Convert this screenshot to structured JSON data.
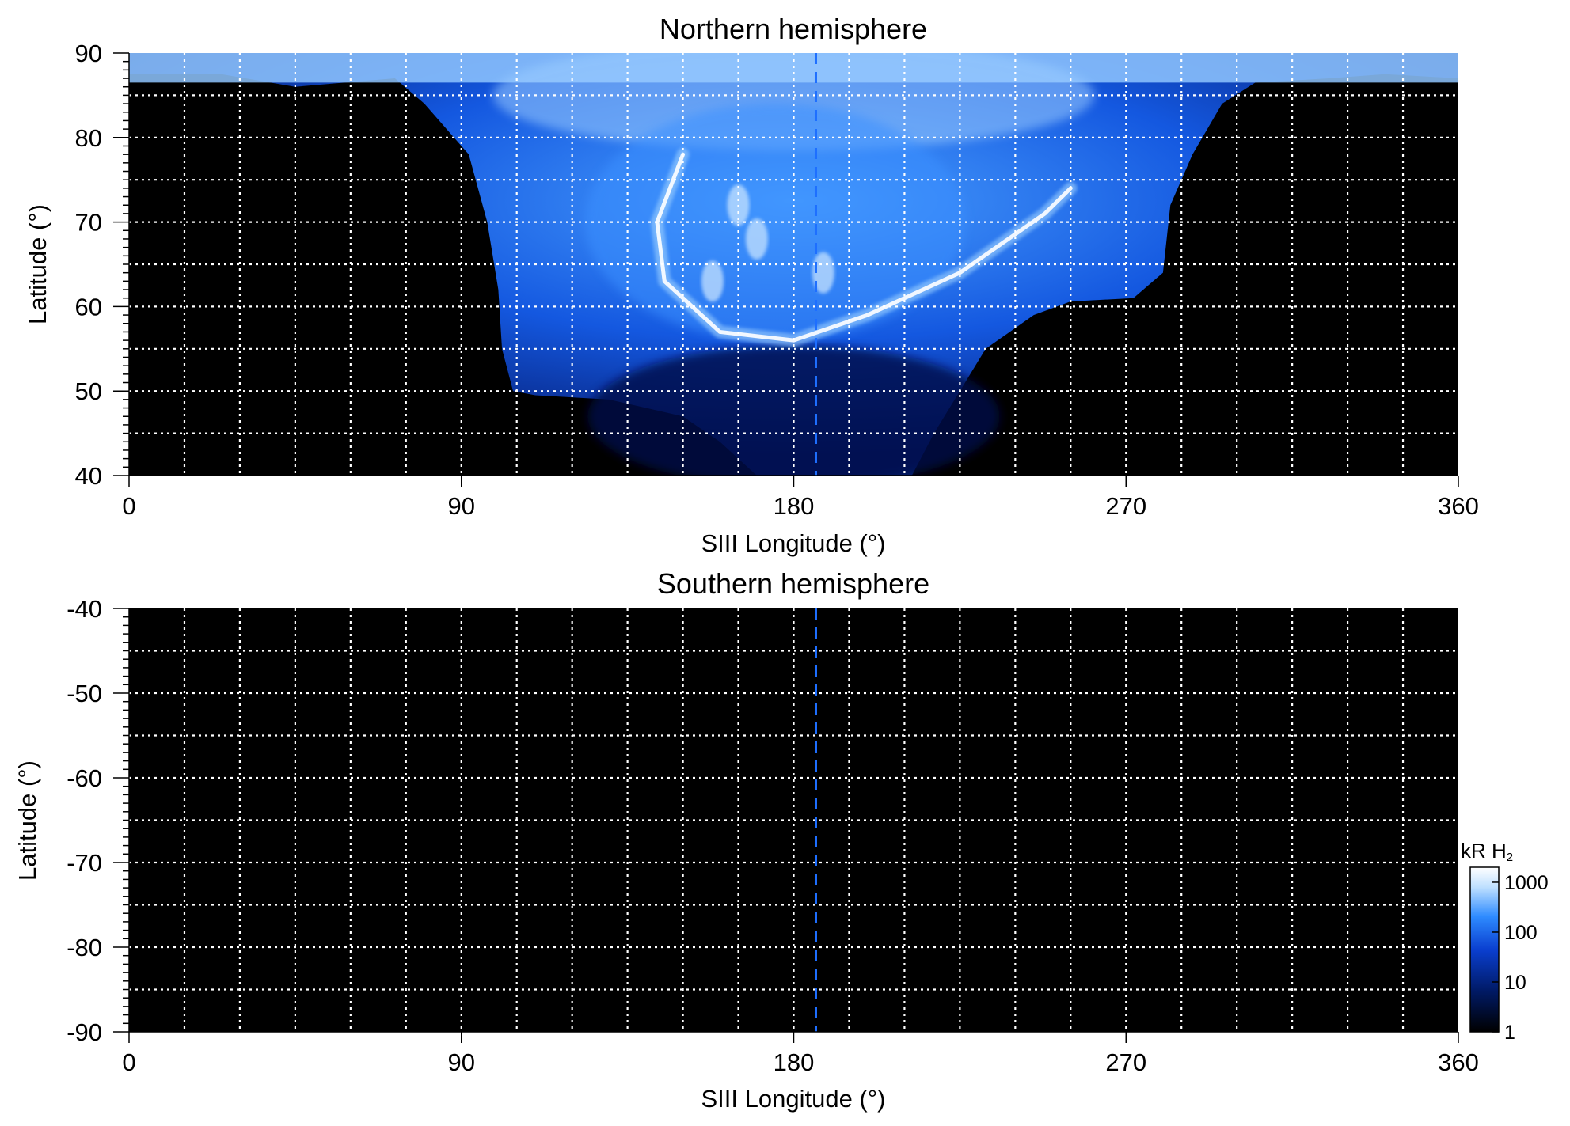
{
  "chart_data": [
    {
      "type": "heatmap",
      "title": "Northern hemisphere",
      "xlabel": "SIII Longitude (°)",
      "ylabel": "Latitude (°)",
      "xlim": [
        0,
        360
      ],
      "ylim": [
        40,
        90
      ],
      "x_ticks": [
        0,
        90,
        180,
        270,
        360
      ],
      "y_ticks": [
        40,
        50,
        60,
        70,
        80,
        90
      ],
      "grid": true,
      "dashed_reference_longitude": 186,
      "description_values": {
        "main_oval": [
          {
            "lon": 150,
            "lat": 78
          },
          {
            "lon": 143,
            "lat": 70
          },
          {
            "lon": 145,
            "lat": 63
          },
          {
            "lon": 160,
            "lat": 57
          },
          {
            "lon": 180,
            "lat": 56
          },
          {
            "lon": 200,
            "lat": 59
          },
          {
            "lon": 225,
            "lat": 64
          },
          {
            "lon": 248,
            "lat": 71
          },
          {
            "lon": 255,
            "lat": 74
          }
        ]
      }
    },
    {
      "type": "heatmap",
      "title": "Southern hemisphere",
      "xlabel": "SIII Longitude (°)",
      "ylabel": "Latitude (°)",
      "xlim": [
        0,
        360
      ],
      "ylim": [
        -90,
        -40
      ],
      "x_ticks": [
        0,
        90,
        180,
        270,
        360
      ],
      "y_ticks": [
        -40,
        -50,
        -60,
        -70,
        -80,
        -90
      ],
      "grid": true,
      "dashed_reference_longitude": 186
    }
  ],
  "colorbar": {
    "label": "kR H",
    "label_sub": "2",
    "scale": "log",
    "ticks": [
      "1000",
      "100",
      "10",
      "1"
    ],
    "range": [
      1,
      2000
    ],
    "colors": [
      "#000000",
      "#001a66",
      "#0a3fd0",
      "#2e8bff",
      "#bfe0ff",
      "#ffffff"
    ]
  },
  "colors": {
    "background": "#000000",
    "reference_line": "#1e6fff",
    "grid": "#ffffff"
  }
}
